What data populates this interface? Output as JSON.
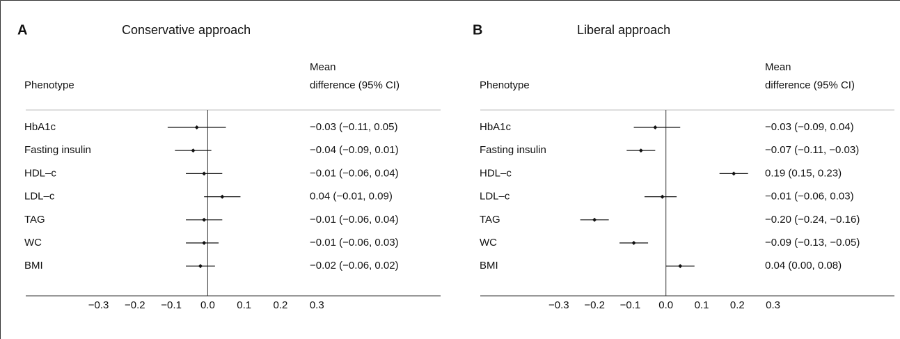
{
  "chart_data": [
    {
      "type": "forest",
      "panel_label": "A",
      "title": "Conservative approach",
      "category_header": "Phenotype",
      "value_header": [
        "Mean",
        "difference (95% CI)"
      ],
      "categories": [
        "HbA1c",
        "Fasting insulin",
        "HDL–c",
        "LDL–c",
        "TAG",
        "WC",
        "BMI"
      ],
      "values": [
        -0.03,
        -0.04,
        -0.01,
        0.04,
        -0.01,
        -0.01,
        -0.02
      ],
      "lower": [
        -0.11,
        -0.09,
        -0.06,
        -0.01,
        -0.06,
        -0.06,
        -0.06
      ],
      "upper": [
        0.05,
        0.01,
        0.04,
        0.09,
        0.04,
        0.03,
        0.02
      ],
      "value_labels": [
        "−0.03 (−0.11, 0.05)",
        "−0.04 (−0.09, 0.01)",
        "−0.01 (−0.06, 0.04)",
        "0.04 (−0.01, 0.09)",
        "−0.01 (−0.06, 0.04)",
        "−0.01 (−0.06, 0.03)",
        "−0.02 (−0.06, 0.02)"
      ],
      "xlim": [
        -0.5,
        0.64
      ],
      "xticks": [
        {
          "value": -0.3,
          "label": "−0.3"
        },
        {
          "value": -0.2,
          "label": "−0.2"
        },
        {
          "value": -0.1,
          "label": "−0.1"
        },
        {
          "value": 0,
          "label": "0.0"
        },
        0.1,
        0.2,
        0.3
      ],
      "color": "#111111",
      "grid": false
    },
    {
      "type": "forest",
      "panel_label": "B",
      "title": "Liberal approach",
      "category_header": "Phenotype",
      "value_header": [
        "Mean",
        "difference (95% CI)"
      ],
      "categories": [
        "HbA1c",
        "Fasting insulin",
        "HDL–c",
        "LDL–c",
        "TAG",
        "WC",
        "BMI"
      ],
      "values": [
        -0.03,
        -0.07,
        0.19,
        -0.01,
        -0.2,
        -0.09,
        0.04
      ],
      "lower": [
        -0.09,
        -0.11,
        0.15,
        -0.06,
        -0.24,
        -0.13,
        0.0
      ],
      "upper": [
        0.04,
        -0.03,
        0.23,
        0.03,
        -0.16,
        -0.05,
        0.08
      ],
      "value_labels": [
        "−0.03 (−0.09, 0.04)",
        "−0.07 (−0.11, −0.03)",
        "0.19 (0.15, 0.23)",
        "−0.01 (−0.06, 0.03)",
        "−0.20 (−0.24, −0.16)",
        "−0.09 (−0.13, −0.05)",
        "0.04 (0.00, 0.08)"
      ],
      "xlim": [
        -0.52,
        0.64
      ],
      "xticks": [
        {
          "value": -0.3,
          "label": "−0.3"
        },
        {
          "value": -0.2,
          "label": "−0.2"
        },
        {
          "value": -0.1,
          "label": "−0.1"
        },
        {
          "value": 0,
          "label": "0.0"
        },
        0.1,
        0.2,
        0.3
      ],
      "color": "#111111",
      "grid": false
    }
  ]
}
